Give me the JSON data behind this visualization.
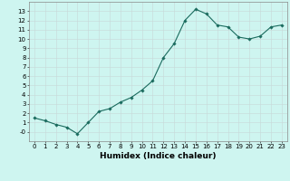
{
  "x": [
    0,
    1,
    2,
    3,
    4,
    5,
    6,
    7,
    8,
    9,
    10,
    11,
    12,
    13,
    14,
    15,
    16,
    17,
    18,
    19,
    20,
    21,
    22,
    23
  ],
  "y": [
    1.5,
    1.2,
    0.8,
    0.5,
    -0.2,
    1.0,
    2.2,
    2.5,
    3.2,
    3.7,
    4.5,
    5.5,
    8.0,
    9.5,
    12.0,
    13.2,
    12.7,
    11.5,
    11.3,
    10.2,
    10.0,
    10.3,
    11.3,
    11.5
  ],
  "line_color": "#1a6b5e",
  "marker": "D",
  "marker_size": 1.8,
  "bg_color": "#cef5f0",
  "grid_color": "#c8d8d8",
  "xlabel": "Humidex (Indice chaleur)",
  "xlim": [
    -0.5,
    23.5
  ],
  "ylim": [
    -1,
    14
  ],
  "xticks": [
    0,
    1,
    2,
    3,
    4,
    5,
    6,
    7,
    8,
    9,
    10,
    11,
    12,
    13,
    14,
    15,
    16,
    17,
    18,
    19,
    20,
    21,
    22,
    23
  ],
  "yticks": [
    0,
    1,
    2,
    3,
    4,
    5,
    6,
    7,
    8,
    9,
    10,
    11,
    12,
    13
  ],
  "ytick_labels": [
    "-0",
    "1",
    "2",
    "3",
    "4",
    "5",
    "6",
    "7",
    "8",
    "9",
    "10",
    "11",
    "12",
    "13"
  ],
  "tick_fontsize": 5.0,
  "xlabel_fontsize": 6.5,
  "line_width": 0.8
}
